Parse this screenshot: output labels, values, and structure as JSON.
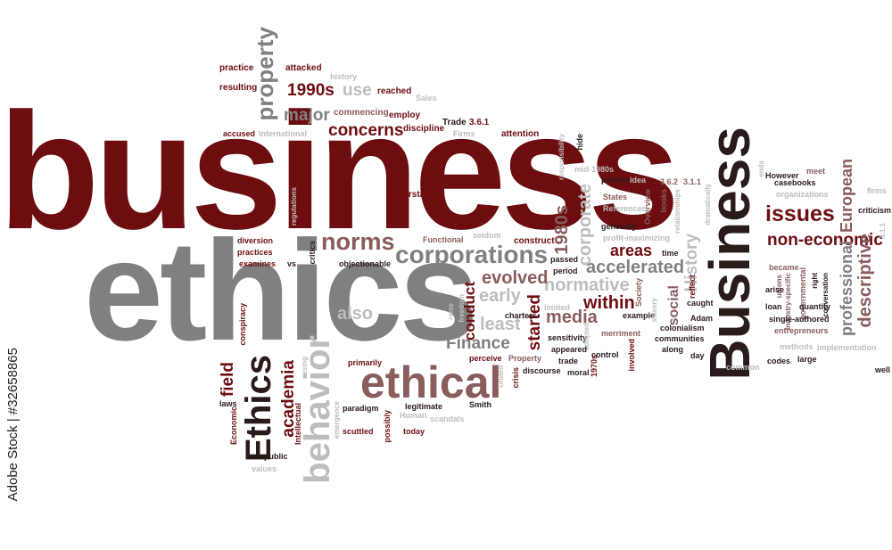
{
  "credit": "Adobe Stock | #32658865",
  "palette": {
    "dark_red": "#6e0d10",
    "muted_red": "#8a5c5c",
    "gray": "#808080",
    "light_gray": "#bdbdbd",
    "near_black": "#2a1a1a"
  },
  "words": {
    "business": "business",
    "ethics": "ethics",
    "Business_cap": "Business",
    "Ethics_cap": "Ethics",
    "behavior": "behavior",
    "ethical": "ethical",
    "corporations": "corporations",
    "norms": "norms",
    "issues": "issues",
    "non_economic": "non-economic",
    "descriptive": "descriptive",
    "professional": "professional",
    "European": "European",
    "accelerated": "accelerated",
    "normative": "normative",
    "evolved": "evolved",
    "within": "within",
    "areas": "areas",
    "media": "media",
    "Finance": "Finance",
    "started": "started",
    "conduct": "conduct",
    "early": "early",
    "least": "least",
    "also": "also",
    "academia": "academia",
    "field": "field",
    "concerns": "concerns",
    "major": "major",
    "property": "property",
    "y1990s": "1990s",
    "use": "use",
    "y1980s": "1980s",
    "corporate": "corporate",
    "History": "History",
    "social": "social",
    "practice": "practice",
    "attacked": "attacked",
    "history": "history",
    "resulting": "resulting",
    "reached": "reached",
    "Sales": "Sales",
    "commencing": "commencing",
    "employ": "employ",
    "accused": "accused",
    "International": "International",
    "discipline": "discipline",
    "Trade": "Trade",
    "n361": "3.6.1",
    "Firms": "Firms",
    "attention": "attention",
    "understand": "understand",
    "regulations": "regulations",
    "diversion": "diversion",
    "practices": "practices",
    "examines": "examines",
    "vs": "vs",
    "critics": "critics",
    "Functional": "Functional",
    "seldom": "seldom",
    "construct": "construct",
    "objectionable": "objectionable",
    "conspiracy": "conspiracy",
    "laws": "laws",
    "Economic": "Economic",
    "public": "public",
    "values": "values",
    "Intellectual": "Intellectual",
    "scuttled": "scuttled",
    "paradigm": "paradigm",
    "primarily": "primarily",
    "emergence": "emergence",
    "using": "using",
    "Human": "Human",
    "possibly": "possibly",
    "today": "today",
    "legitimate": "legitimate",
    "scandals": "scandals",
    "Smith": "Smith",
    "perceive": "perceive",
    "freedom": "freedom",
    "raise": "raise",
    "charters": "charters",
    "United": "United",
    "Property": "Property",
    "crisis": "crisis",
    "discourse": "discourse",
    "trade": "trade",
    "moral": "moral",
    "y1970s": "1970s",
    "control": "control",
    "involved": "involved",
    "sensitivity": "sensitivity",
    "adopted": "adopted",
    "merriment": "merriment",
    "appeared": "appeared",
    "limited": "limited",
    "period": "period",
    "passed": "passed",
    "hide": "hide",
    "responsibility": "responsibility",
    "mid1980s": "mid-1980s",
    "policies": "policies",
    "idea": "idea",
    "References": "References",
    "States": "States",
    "Overview": "Overview",
    "generally": "generally",
    "profit_maximizing": "profit-maximizing",
    "books": "books",
    "n362": "3.6.2",
    "n311": "3.1.1",
    "relationships": "relationships",
    "dramatically": "dramatically",
    "time": "time",
    "Society": "Society",
    "example": "example",
    "slavery": "slavery",
    "colonialism": "colonialism",
    "communities": "communities",
    "along": "along",
    "day": "day",
    "Adam": "Adam",
    "caught": "caught",
    "reflect": "reflect",
    "However": "However",
    "casebooks": "casebooks",
    "meet": "meet",
    "organizations": "organizations",
    "ends": "ends",
    "criticism": "criticism",
    "firms": "firms",
    "n311b": "3.1.1",
    "became": "became",
    "unions": "unions",
    "arise": "arise",
    "governmental": "governmental",
    "Industry_specific": "Industry-specific",
    "right": "right",
    "conversation": "conversation",
    "loan": "loan",
    "quantity": "quantity",
    "single_authored": "single-authored",
    "entrepreneurs": "entrepreneurs",
    "methods": "methods",
    "implementation": "implementation",
    "codes": "codes",
    "large": "large",
    "common": "common",
    "well": "well"
  }
}
